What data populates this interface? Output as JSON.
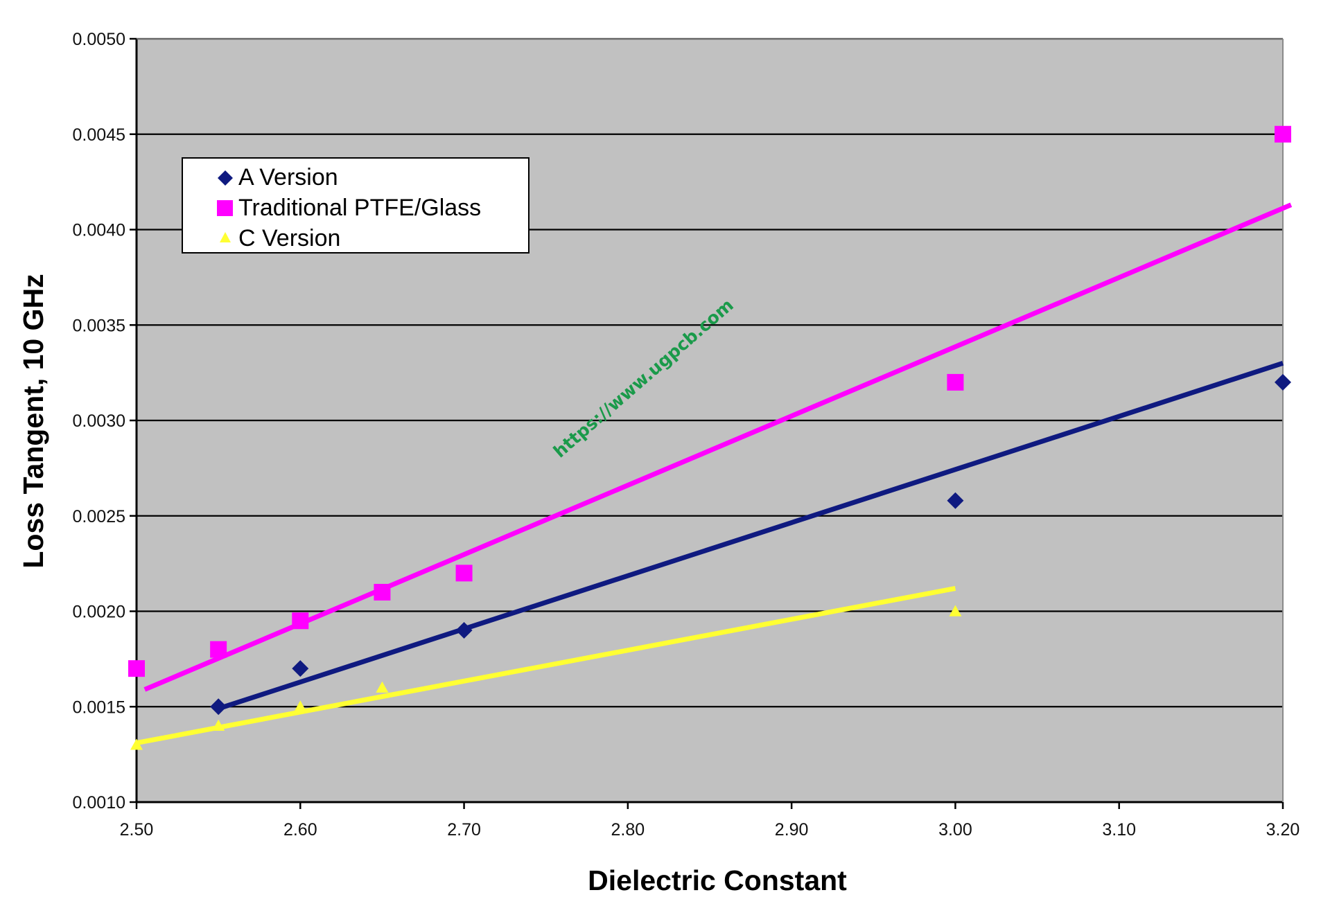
{
  "chart_data": {
    "type": "scatter",
    "title": "",
    "xlabel": "Dielectric Constant",
    "ylabel": "Loss Tangent, 10 GHz",
    "xlim": [
      2.5,
      3.2
    ],
    "ylim": [
      0.001,
      0.005
    ],
    "x_ticks": [
      "2.50",
      "2.60",
      "2.70",
      "2.80",
      "2.90",
      "3.00",
      "3.10",
      "3.20"
    ],
    "y_ticks": [
      "0.0010",
      "0.0015",
      "0.0020",
      "0.0025",
      "0.0030",
      "0.0035",
      "0.0040",
      "0.0045",
      "0.0050"
    ],
    "grid": "horizontal",
    "legend_position": "top-left",
    "plot_background": "#c0c0c0",
    "series": [
      {
        "name": "A Version",
        "marker": "diamond",
        "color": "#0f1a80",
        "points": [
          [
            2.55,
            0.0015
          ],
          [
            2.6,
            0.0017
          ],
          [
            2.7,
            0.0019
          ],
          [
            3.0,
            0.00258
          ],
          [
            3.2,
            0.0032
          ]
        ],
        "trendline": [
          [
            2.55,
            0.00149
          ],
          [
            3.2,
            0.0033
          ]
        ]
      },
      {
        "name": "Traditional PTFE/Glass",
        "marker": "square",
        "color": "#ff00ff",
        "points": [
          [
            2.5,
            0.0017
          ],
          [
            2.55,
            0.0018
          ],
          [
            2.6,
            0.00195
          ],
          [
            2.65,
            0.0021
          ],
          [
            2.7,
            0.0022
          ],
          [
            3.0,
            0.0032
          ],
          [
            3.2,
            0.0045
          ]
        ],
        "trendline": [
          [
            2.505,
            0.00159
          ],
          [
            3.205,
            0.00413
          ]
        ]
      },
      {
        "name": "C Version",
        "marker": "triangle",
        "color": "#ffff33",
        "points": [
          [
            2.5,
            0.0013
          ],
          [
            2.55,
            0.0014
          ],
          [
            2.6,
            0.0015
          ],
          [
            2.65,
            0.0016
          ],
          [
            3.0,
            0.002
          ]
        ],
        "trendline": [
          [
            2.5,
            0.00131
          ],
          [
            3.0,
            0.00212
          ]
        ]
      }
    ],
    "annotations": [
      "https://www.ugpcb.com"
    ]
  }
}
